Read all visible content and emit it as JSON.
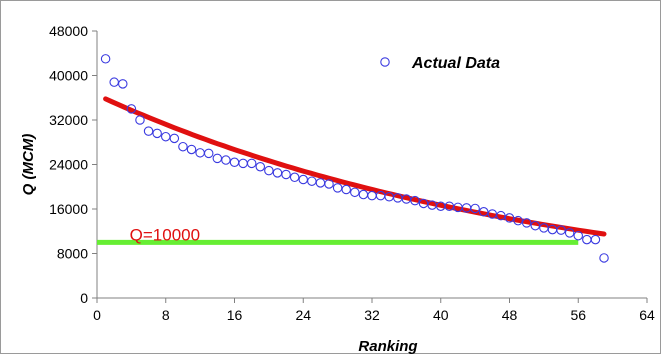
{
  "chart_data": {
    "type": "scatter",
    "xlabel": "Ranking",
    "ylabel": "Q (MCM)",
    "xlim": [
      0,
      64
    ],
    "ylim": [
      0,
      48000
    ],
    "x_ticks": [
      "0",
      "8",
      "16",
      "24",
      "32",
      "40",
      "48",
      "56",
      "64"
    ],
    "y_ticks": [
      "0",
      "8000",
      "16000",
      "24000",
      "32000",
      "40000",
      "48000"
    ],
    "legend_position": "top-right",
    "grid": false,
    "series": [
      {
        "name": "Actual Data",
        "marker": "open-circle",
        "color": "#3a3ae0",
        "x": [
          1,
          2,
          3,
          4,
          5,
          6,
          7,
          8,
          9,
          10,
          11,
          12,
          13,
          14,
          15,
          16,
          17,
          18,
          19,
          20,
          21,
          22,
          23,
          24,
          25,
          26,
          27,
          28,
          29,
          30,
          31,
          32,
          33,
          34,
          35,
          36,
          37,
          38,
          39,
          40,
          41,
          42,
          43,
          44,
          45,
          46,
          47,
          48,
          49,
          50,
          51,
          52,
          53,
          54,
          55,
          56,
          57,
          58,
          59
        ],
        "y": [
          43000,
          38800,
          38500,
          34000,
          32000,
          30000,
          29600,
          29000,
          28700,
          27200,
          26700,
          26100,
          26000,
          25100,
          24800,
          24400,
          24200,
          24200,
          23600,
          22900,
          22500,
          22200,
          21700,
          21300,
          21000,
          20700,
          20500,
          19800,
          19500,
          19000,
          18600,
          18400,
          18400,
          18200,
          18000,
          17800,
          17500,
          17000,
          16700,
          16500,
          16500,
          16300,
          16200,
          16100,
          15500,
          15100,
          14800,
          14400,
          13900,
          13500,
          13000,
          12600,
          12300,
          12200,
          11700,
          11200,
          10500,
          10500,
          7200
        ]
      },
      {
        "name": "",
        "type": "line",
        "color": "#e01010",
        "x": [
          1,
          59
        ],
        "y": [
          35800,
          11500
        ],
        "curve": "exponential"
      },
      {
        "name": "",
        "type": "line",
        "color": "#66ee33",
        "x": [
          0,
          56
        ],
        "y": [
          10000,
          10000
        ]
      }
    ],
    "annotations": [
      {
        "text": "Q=10000",
        "x": 3.8,
        "y": 10000,
        "color": "#e01010"
      }
    ]
  }
}
